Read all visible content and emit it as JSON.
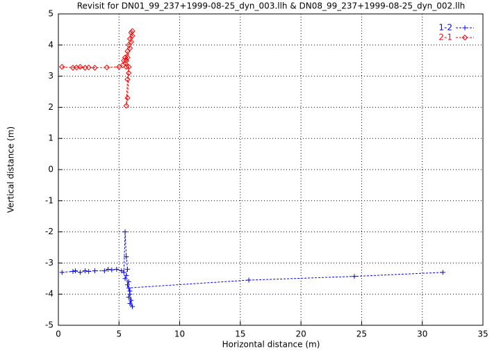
{
  "chart_data": {
    "type": "line",
    "title": "Revisit for DN01_99_237+1999-08-25_dyn_003.llh & DN08_99_237+1999-08-25_dyn_002.llh",
    "x_label": "Horizontal distance (m)",
    "y_label": "Vertical distance (m)",
    "xlim": [
      0,
      35
    ],
    "ylim": [
      -5,
      5
    ],
    "xticks": [
      0,
      5,
      10,
      15,
      20,
      25,
      30,
      35
    ],
    "yticks": [
      -5,
      -4,
      -3,
      -2,
      -1,
      0,
      1,
      2,
      3,
      4,
      5
    ],
    "grid": true,
    "legend": "upper right",
    "series": [
      {
        "name": "1-2",
        "color": "#0000ff",
        "marker": "plus",
        "x": [
          0.3,
          1.2,
          1.4,
          1.8,
          2.2,
          2.5,
          3,
          3.8,
          4.1,
          4.4,
          4.8,
          5.2,
          5.4,
          5.5,
          5.6,
          5.7,
          5.6,
          5.5,
          5.8,
          5.7,
          5.9,
          5.8,
          6.0,
          5.9,
          6.1,
          5.9,
          5.8,
          15.7,
          24.4,
          31.7
        ],
        "values": [
          -3.3,
          -3.27,
          -3.25,
          -3.3,
          -3.25,
          -3.27,
          -3.25,
          -3.25,
          -3.2,
          -3.22,
          -3.2,
          -3.25,
          -3.3,
          -2.0,
          -2.8,
          -3.2,
          -3.4,
          -3.5,
          -3.6,
          -3.7,
          -3.9,
          -4.1,
          -4.2,
          -4.3,
          -4.4,
          -4.0,
          -3.8,
          -3.55,
          -3.43,
          -3.3
        ]
      },
      {
        "name": "2-1",
        "color": "#ff0000",
        "marker": "diamond",
        "x": [
          0.3,
          1.2,
          1.5,
          1.8,
          2.2,
          2.5,
          3,
          4,
          5,
          5.3,
          5.4,
          5.6,
          5.5,
          5.7,
          5.6,
          5.8,
          5.7,
          5.6,
          5.7,
          5.8,
          5.7,
          5.9,
          5.8,
          6.0,
          5.9,
          6.1,
          6.0,
          6.1
        ],
        "values": [
          3.3,
          3.27,
          3.28,
          3.3,
          3.27,
          3.28,
          3.27,
          3.28,
          3.3,
          3.35,
          3.5,
          3.3,
          3.6,
          3.8,
          3.5,
          3.3,
          2.9,
          2.05,
          2.3,
          3.1,
          3.6,
          3.9,
          4.0,
          4.1,
          4.2,
          4.3,
          4.4,
          4.45
        ]
      }
    ]
  }
}
